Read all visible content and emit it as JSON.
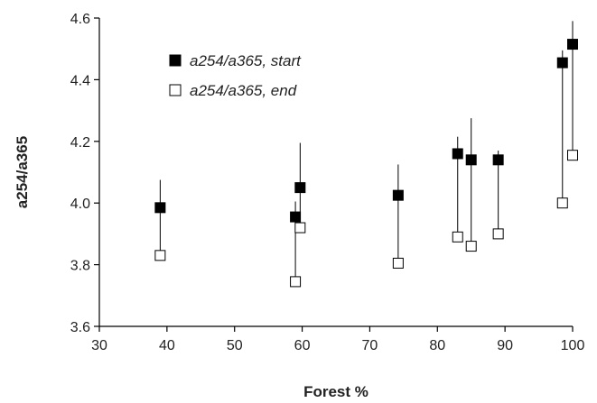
{
  "chart_data": {
    "type": "scatter",
    "xlabel": "Forest %",
    "ylabel": "a254/a365",
    "xlim": [
      30,
      100
    ],
    "ylim": [
      3.6,
      4.6
    ],
    "x_ticks": [
      "30",
      "40",
      "50",
      "60",
      "70",
      "80",
      "90",
      "100"
    ],
    "y_ticks": [
      "3.6",
      "3.8",
      "4.0",
      "4.2",
      "4.4",
      "4.6"
    ],
    "grid": false,
    "legend": "top-left",
    "series": [
      {
        "name": "a254/a365, start",
        "marker": "filled-square",
        "color": "#000000",
        "points": [
          {
            "x": 39,
            "y": 3.985,
            "err_up": 0.09
          },
          {
            "x": 59,
            "y": 3.955,
            "err_up": 0.05
          },
          {
            "x": 59.7,
            "y": 4.05,
            "err_up": 0.145
          },
          {
            "x": 74.2,
            "y": 4.025,
            "err_up": 0.1
          },
          {
            "x": 83,
            "y": 4.16,
            "err_up": 0.055
          },
          {
            "x": 85,
            "y": 4.14,
            "err_up": 0.135
          },
          {
            "x": 89,
            "y": 4.14,
            "err_up": 0.03
          },
          {
            "x": 98.5,
            "y": 4.455,
            "err_up": 0.04
          },
          {
            "x": 100,
            "y": 4.515,
            "err_up": 0.075
          }
        ]
      },
      {
        "name": "a254/a365, end",
        "marker": "open-square",
        "color": "#000000",
        "points": [
          {
            "x": 39,
            "y": 3.83
          },
          {
            "x": 59,
            "y": 3.745
          },
          {
            "x": 59.7,
            "y": 3.92
          },
          {
            "x": 74.2,
            "y": 3.805
          },
          {
            "x": 83,
            "y": 3.89
          },
          {
            "x": 85,
            "y": 3.86
          },
          {
            "x": 89,
            "y": 3.9
          },
          {
            "x": 98.5,
            "y": 4.0
          },
          {
            "x": 100,
            "y": 4.155
          }
        ]
      }
    ]
  }
}
